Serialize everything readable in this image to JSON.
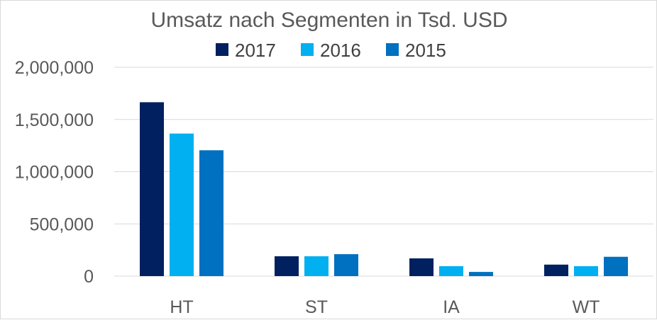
{
  "chart_data": {
    "type": "bar",
    "title": "Umsatz nach Segmenten in Tsd. USD",
    "categories": [
      "HT",
      "ST",
      "IA",
      "WT"
    ],
    "series": [
      {
        "name": "2017",
        "color": "#002060",
        "values": [
          1665000,
          190000,
          170000,
          110000
        ]
      },
      {
        "name": "2016",
        "color": "#00B0F0",
        "values": [
          1365000,
          190000,
          95000,
          95000
        ]
      },
      {
        "name": "2015",
        "color": "#0070C0",
        "values": [
          1205000,
          210000,
          40000,
          185000
        ]
      }
    ],
    "ylim": [
      0,
      2000000
    ],
    "yticks": [
      0,
      500000,
      1000000,
      1500000,
      2000000
    ],
    "ytick_labels": [
      "0",
      "500,000",
      "1,000,000",
      "1,500,000",
      "2,000,000"
    ],
    "xlabel": "",
    "ylabel": "",
    "grid": true,
    "legend_position": "top-center"
  }
}
